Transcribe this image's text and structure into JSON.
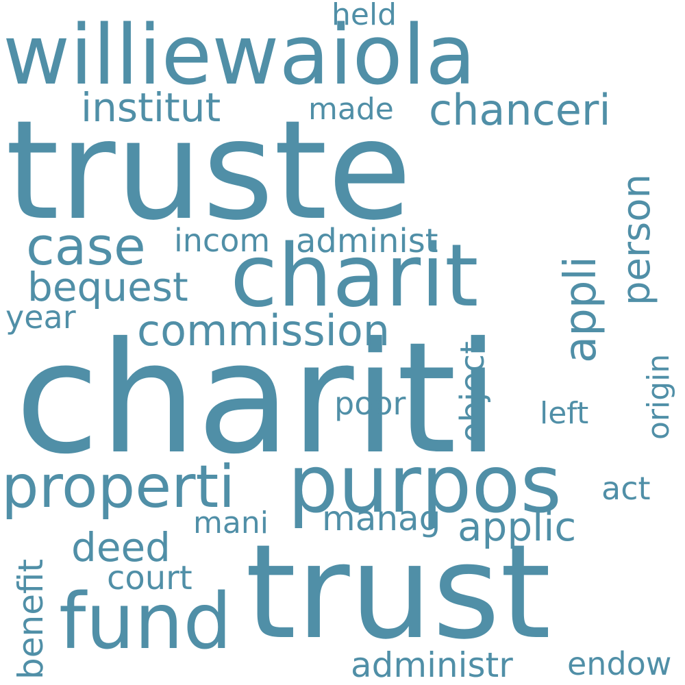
{
  "cloud": {
    "color": "#508fa7",
    "background": "#ffffff",
    "words": [
      {
        "key": "chariti",
        "text": "chariti"
      },
      {
        "key": "truste",
        "text": "truste"
      },
      {
        "key": "trust",
        "text": "trust"
      },
      {
        "key": "williewaiola",
        "text": "williewaiola"
      },
      {
        "key": "charit",
        "text": "charit"
      },
      {
        "key": "purpos",
        "text": "purpos"
      },
      {
        "key": "fund",
        "text": "fund"
      },
      {
        "key": "properti",
        "text": "properti"
      },
      {
        "key": "case",
        "text": "case"
      },
      {
        "key": "commission",
        "text": "commission"
      },
      {
        "key": "chanceri",
        "text": "chanceri"
      },
      {
        "key": "institut",
        "text": "institut"
      },
      {
        "key": "bequest",
        "text": "bequest"
      },
      {
        "key": "applic",
        "text": "applic"
      },
      {
        "key": "deed",
        "text": "deed"
      },
      {
        "key": "administr",
        "text": "administr"
      },
      {
        "key": "manag",
        "text": "manag"
      },
      {
        "key": "court",
        "text": "court"
      },
      {
        "key": "administ",
        "text": "administ"
      },
      {
        "key": "incom",
        "text": "incom"
      },
      {
        "key": "year",
        "text": "year"
      },
      {
        "key": "endow",
        "text": "endow"
      },
      {
        "key": "poor",
        "text": "poor"
      },
      {
        "key": "made",
        "text": "made"
      },
      {
        "key": "held",
        "text": "held"
      },
      {
        "key": "act",
        "text": "act"
      },
      {
        "key": "mani",
        "text": "mani"
      },
      {
        "key": "left",
        "text": "left"
      },
      {
        "key": "person",
        "text": "person"
      },
      {
        "key": "appli",
        "text": "appli"
      },
      {
        "key": "object",
        "text": "object"
      },
      {
        "key": "origin",
        "text": "origin"
      },
      {
        "key": "benefit",
        "text": "benefit"
      }
    ]
  }
}
